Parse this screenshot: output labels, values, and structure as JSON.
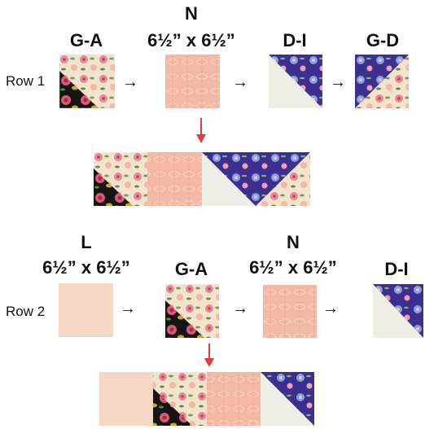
{
  "row1": {
    "label": "Row 1",
    "blocks": [
      {
        "name": "G-A",
        "size": ""
      },
      {
        "name": "N",
        "size": "6½” x 6½”"
      },
      {
        "name": "D-I",
        "size": ""
      },
      {
        "name": "G-D",
        "size": ""
      }
    ]
  },
  "row2": {
    "label": "Row 2",
    "blocks": [
      {
        "name": "L",
        "size": "6½” x 6½”"
      },
      {
        "name": "G-A",
        "size": ""
      },
      {
        "name": "N",
        "size": "6½” x 6½”"
      },
      {
        "name": "D-I",
        "size": ""
      }
    ]
  },
  "colors": {
    "cream": "#f1e3cc",
    "peach": "#f3b9a4",
    "light_peach": "#f4d7c4",
    "navy": "#3d2f8f",
    "off_white": "#efeee4",
    "black": "#151515",
    "red_arrow": "#e23b3b"
  }
}
